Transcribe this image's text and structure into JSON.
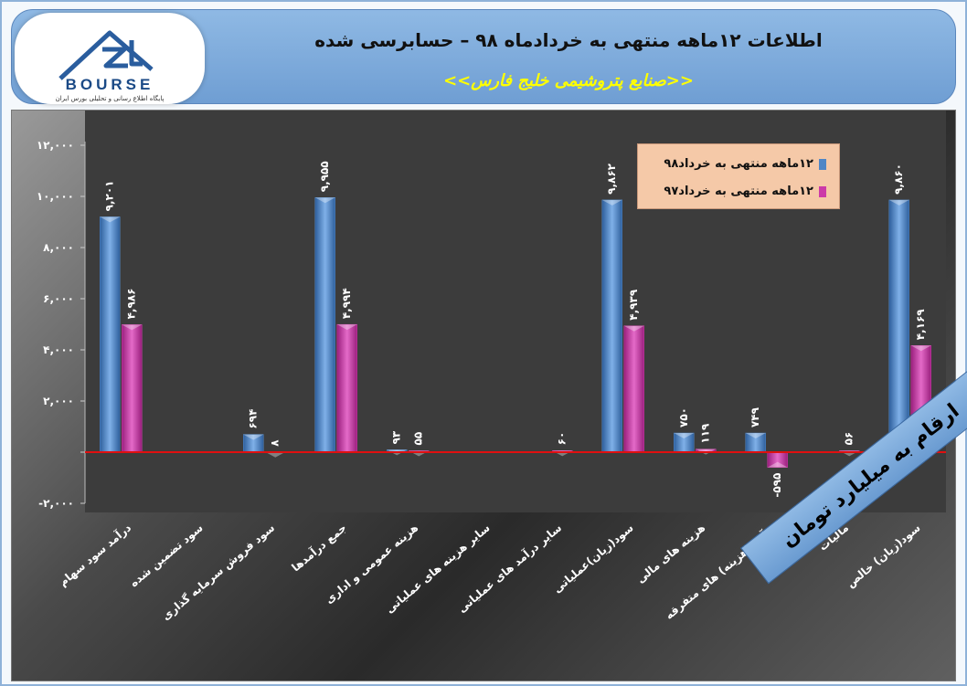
{
  "header": {
    "title": "اطلاعات ۱۲ماهه منتهی به خردادماه ۹۸ – حسابرسی شده",
    "subtitle": "<<صنایع پتروشیمی خلیج فارس>>",
    "logo_text": "BOURSE",
    "logo_tagline": "پایگاه اطلاع رسانی و تحلیلی بورس ایران"
  },
  "unit_banner": "ارقام به میلیارد تومان",
  "colors": {
    "series_98": "#4f86c6",
    "series_97": "#cc3aa8",
    "zero_line": "#e01010"
  },
  "chart_data": {
    "type": "bar",
    "categories": [
      "درآمد سود سهام",
      "سود تضمین شده",
      "سود فروش سرمایه گذاری",
      "جمع درآمدها",
      "هزینه عمومی و اداری",
      "سایر هزینه های عملیاتی",
      "سایر درآمد های عملیاتی",
      "سود(زیان)عملیاتی",
      "هزینه های مالی",
      "درآمد (هزینه) های متفرقه",
      "مالیات",
      "سود(زیان) خالص"
    ],
    "series": [
      {
        "name": "۱۲ماهه منتهی به خرداد۹۸",
        "values": [
          9201,
          0,
          694,
          9955,
          93,
          0,
          0,
          9862,
          750,
          749,
          0,
          9860
        ],
        "labels": [
          "۹,۲۰۱",
          "",
          "۶۹۴",
          "۹,۹۵۵",
          "۹۳",
          "",
          "",
          "۹,۸۶۲",
          "۷۵۰",
          "۷۴۹",
          "",
          "۹,۸۶۰"
        ]
      },
      {
        "name": "۱۲ماهه منتهی به خرداد۹۷",
        "values": [
          4986,
          0,
          8,
          4994,
          55,
          0,
          60,
          4939,
          119,
          -595,
          56,
          4169
        ],
        "labels": [
          "۴,۹۸۶",
          "",
          "۸",
          "۴,۹۹۴",
          "۵۵",
          "",
          "۶۰",
          "۴,۹۳۹",
          "۱۱۹",
          "-۵۹۵",
          "۵۶",
          "۴,۱۶۹"
        ]
      }
    ],
    "ylim": [
      -2000,
      12000
    ],
    "yticks": [
      -2000,
      0,
      2000,
      4000,
      6000,
      8000,
      10000,
      12000
    ],
    "ytick_labels": [
      "-۲,۰۰۰",
      "",
      "۲,۰۰۰",
      "۴,۰۰۰",
      "۶,۰۰۰",
      "۸,۰۰۰",
      "۱۰,۰۰۰",
      "۱۲,۰۰۰"
    ],
    "legend_position": "top-right",
    "grid": false
  }
}
